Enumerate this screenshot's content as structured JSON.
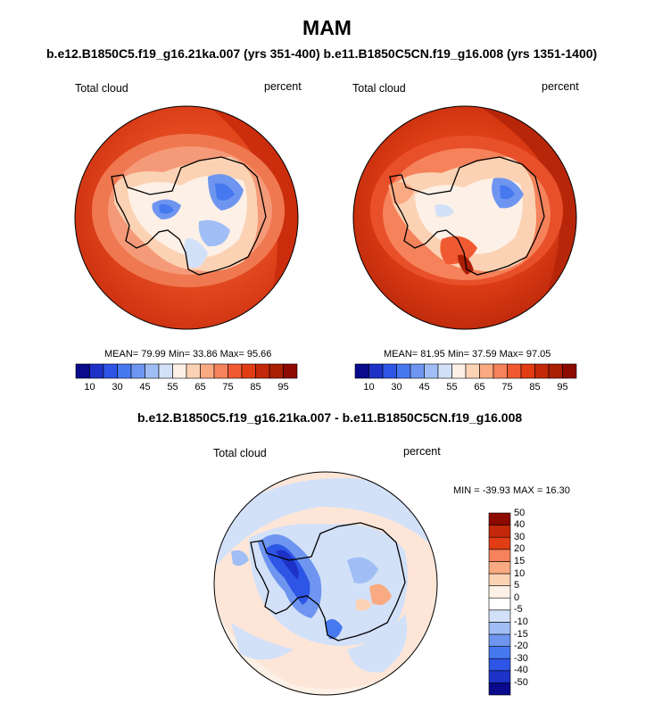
{
  "season_title": "MAM",
  "top_subtitle": "b.e12.B1850C5.f19_g16.21ka.007 (yrs 351-400) b.e11.B1850C5CN.f19_g16.008 (yrs 1351-1400)",
  "diff_subtitle": "b.e12.B1850C5.f19_g16.21ka.007 - b.e11.B1850C5CN.f19_g16.008",
  "panels": [
    {
      "variable": "Total cloud",
      "units": "percent",
      "stats": "MEAN=  79.99  Min=  33.86  Max=  95.66"
    },
    {
      "variable": "Total cloud",
      "units": "percent",
      "stats": "MEAN=  81.95  Min=  37.59  Max=  97.05"
    },
    {
      "variable": "Total cloud",
      "units": "percent",
      "stats": "MIN = -39.93 MAX =  16.30"
    }
  ],
  "abs_colorbar": {
    "colors": [
      "#0a0a8c",
      "#1e32c8",
      "#2d55e6",
      "#4678f0",
      "#6e96f0",
      "#a0bef5",
      "#d2e1f8",
      "#fdf0e6",
      "#fcd2b4",
      "#faaa82",
      "#f5825a",
      "#f05a32",
      "#e13c14",
      "#c3280a",
      "#aa1e05",
      "#8c0a00"
    ],
    "tick_labels": [
      "10",
      "30",
      "45",
      "55",
      "65",
      "75",
      "85",
      "95"
    ]
  },
  "diff_colorbar": {
    "colors": [
      "#0a0a8c",
      "#1e32c8",
      "#2d55e6",
      "#4678f0",
      "#6e96f0",
      "#a0bef5",
      "#d2e1f8",
      "#ffffff",
      "#fdf0e6",
      "#fcd2b4",
      "#faaa82",
      "#f5825a",
      "#e13c14",
      "#c3280a",
      "#8c0a00"
    ],
    "tick_labels": [
      "-50",
      "-40",
      "-30",
      "-20",
      "-15",
      "-10",
      "-5",
      "0",
      "5",
      "10",
      "15",
      "20",
      "30",
      "40",
      "50"
    ]
  },
  "colors": {
    "ocean_left": "#e2481e",
    "ocean_right": "#dc3c14",
    "ocean_diff": "#fde6d8",
    "coastline": "#000000"
  }
}
